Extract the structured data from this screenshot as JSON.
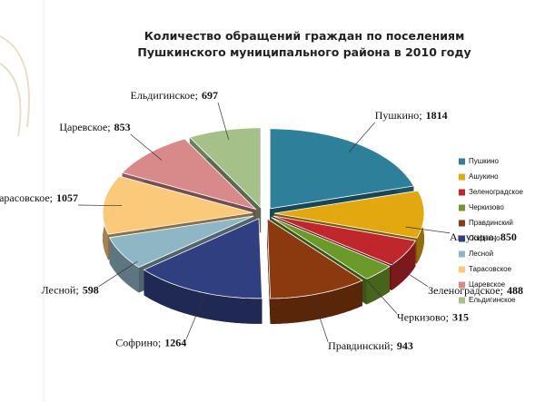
{
  "chart_data": {
    "type": "pie3d",
    "title": [
      "Количество обращений граждан по поселениям",
      "Пушкинского муниципального района в 2010 году"
    ],
    "categories": [
      "Пушкино",
      "Ашукино",
      "Зеленоградское",
      "Черкизово",
      "Правдинский",
      "Софрино",
      "Лесной",
      "Тарасовское",
      "Царевское",
      "Ельдигинское"
    ],
    "values": [
      1814,
      850,
      488,
      315,
      943,
      1264,
      598,
      1057,
      853,
      697
    ],
    "colors": [
      "#2e7f9a",
      "#e3a810",
      "#c0272d",
      "#6b9a2a",
      "#8a3a0e",
      "#2f3f7f",
      "#8fb6c4",
      "#fac97a",
      "#d88a8a",
      "#a6c08a"
    ],
    "label_separator": ";",
    "legend": "right"
  }
}
